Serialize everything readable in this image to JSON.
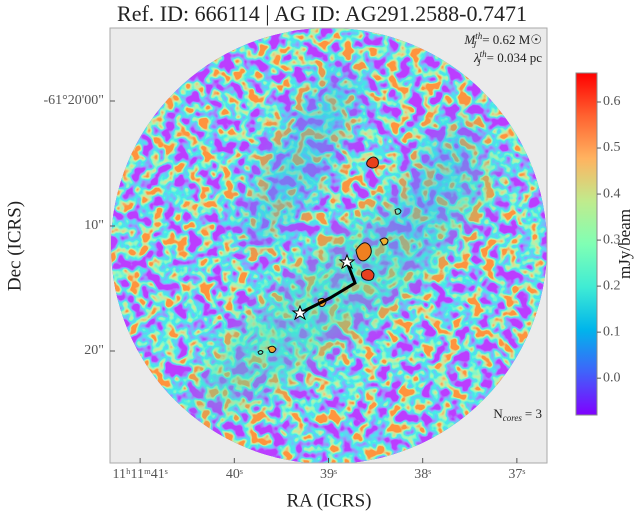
{
  "chart_data": {
    "type": "image",
    "title": "Ref. ID: 666114 | AG ID: AG291.2588-0.7471",
    "xlabel": "RA (ICRS)",
    "ylabel": "Dec (ICRS)",
    "xlim": [
      41.32,
      36.68
    ],
    "xticks": [
      {
        "value": 41,
        "label": "11ʰ11ᵐ41ˢ"
      },
      {
        "value": 40,
        "label": "40ˢ"
      },
      {
        "value": 39,
        "label": "39ˢ"
      },
      {
        "value": 38,
        "label": "38ˢ"
      },
      {
        "value": 37,
        "label": "37ˢ"
      }
    ],
    "ylim": [
      -28.96,
      5.84
    ],
    "yticks": [
      {
        "value": 0,
        "label": "-61°20'00\""
      },
      {
        "value": -10,
        "label": "10\""
      },
      {
        "value": -20,
        "label": "20\""
      }
    ],
    "colormap": "rainbow",
    "colorbar_label": "mJy/beam",
    "clim": [
      -0.08,
      0.663
    ],
    "cticks": [
      {
        "value": 0,
        "label": "0.0"
      },
      0.1,
      0.2,
      0.3,
      0.4,
      0.5,
      0.6
    ],
    "annotations": [
      {
        "symbol": "M",
        "sup": "th",
        "sub": "J",
        "text": "= 0.62 M☉"
      },
      {
        "symbol": "λ",
        "sup": "th",
        "sub": "J",
        "text": "= 0.034 pc"
      }
    ],
    "cores_label": {
      "symbol": "N",
      "sub": "cores",
      "text": "= 3"
    }
  }
}
